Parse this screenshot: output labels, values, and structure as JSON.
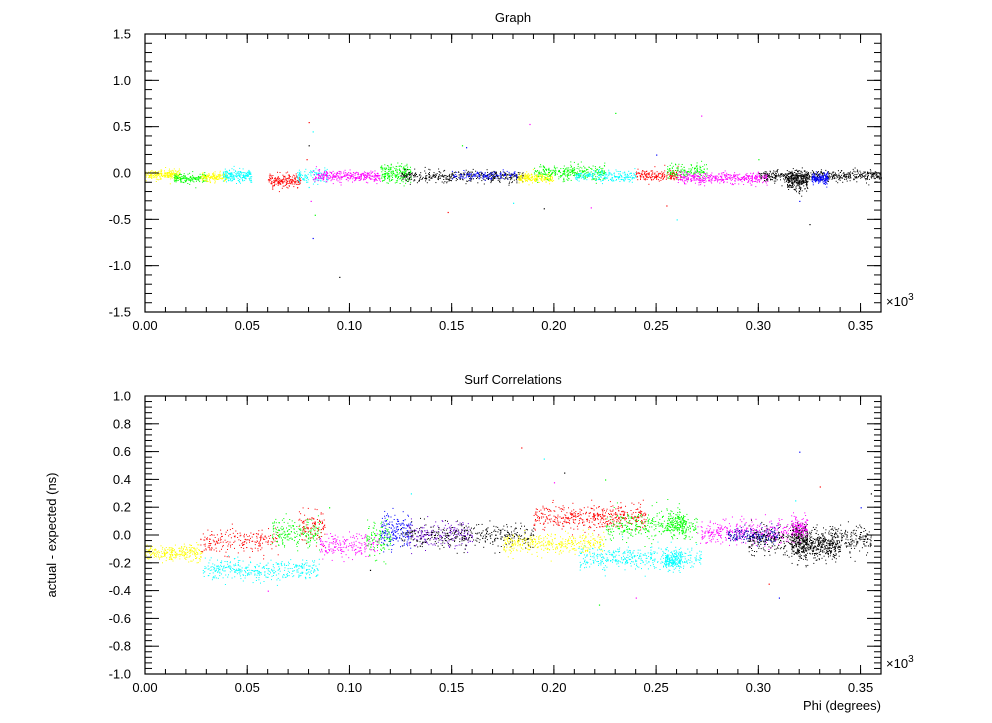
{
  "colors": {
    "yellow": "#ffff00",
    "cyan": "#00ffff",
    "green": "#00ff00",
    "red": "#ff0000",
    "magenta": "#ff00ff",
    "black": "#000000",
    "blue": "#0000ff",
    "violet": "#6600cc",
    "navy": "#0000aa"
  },
  "chart_data": [
    {
      "type": "scatter",
      "title": "Graph",
      "xlabel": "",
      "ylabel": "",
      "xlim": [
        0,
        0.36
      ],
      "ylim": [
        -1.5,
        1.5
      ],
      "x_exponent_label": "×10",
      "x_exponent_power": "3",
      "x_ticks": [
        "0.00",
        "0.05",
        "0.10",
        "0.15",
        "0.20",
        "0.25",
        "0.30",
        "0.35"
      ],
      "y_ticks": [
        "-1.5",
        "-1.0",
        "-0.5",
        "0.0",
        "0.5",
        "1.0",
        "1.5"
      ],
      "grid": false,
      "clusters": [
        {
          "color": "yellow",
          "x": [
            0.0,
            0.017
          ],
          "y": -0.01,
          "spread": 0.025,
          "n": 220
        },
        {
          "color": "green",
          "x": [
            0.014,
            0.03
          ],
          "y": -0.05,
          "spread": 0.025,
          "n": 160
        },
        {
          "color": "yellow",
          "x": [
            0.027,
            0.04
          ],
          "y": -0.04,
          "spread": 0.025,
          "n": 150
        },
        {
          "color": "cyan",
          "x": [
            0.038,
            0.052
          ],
          "y": -0.02,
          "spread": 0.035,
          "n": 200
        },
        {
          "color": "red",
          "x": [
            0.06,
            0.076
          ],
          "y": -0.08,
          "spread": 0.03,
          "n": 200
        },
        {
          "color": "cyan",
          "x": [
            0.074,
            0.09
          ],
          "y": -0.03,
          "spread": 0.04,
          "n": 120
        },
        {
          "color": "magenta",
          "x": [
            0.082,
            0.115
          ],
          "y": -0.03,
          "spread": 0.03,
          "n": 320
        },
        {
          "color": "green",
          "x": [
            0.115,
            0.13
          ],
          "y": 0.0,
          "spread": 0.05,
          "n": 220
        },
        {
          "color": "black",
          "x": [
            0.125,
            0.185
          ],
          "y": -0.03,
          "spread": 0.03,
          "n": 420
        },
        {
          "color": "blue",
          "x": [
            0.15,
            0.182
          ],
          "y": -0.02,
          "spread": 0.025,
          "n": 140
        },
        {
          "color": "yellow",
          "x": [
            0.182,
            0.2
          ],
          "y": -0.05,
          "spread": 0.025,
          "n": 220
        },
        {
          "color": "green",
          "x": [
            0.19,
            0.225
          ],
          "y": 0.01,
          "spread": 0.04,
          "n": 320
        },
        {
          "color": "cyan",
          "x": [
            0.21,
            0.24
          ],
          "y": -0.03,
          "spread": 0.03,
          "n": 220
        },
        {
          "color": "red",
          "x": [
            0.24,
            0.262
          ],
          "y": -0.02,
          "spread": 0.03,
          "n": 200
        },
        {
          "color": "green",
          "x": [
            0.255,
            0.275
          ],
          "y": 0.02,
          "spread": 0.04,
          "n": 160
        },
        {
          "color": "magenta",
          "x": [
            0.26,
            0.305
          ],
          "y": -0.05,
          "spread": 0.03,
          "n": 420
        },
        {
          "color": "black",
          "x": [
            0.3,
            0.36
          ],
          "y": -0.03,
          "spread": 0.03,
          "n": 520
        },
        {
          "color": "black",
          "x": [
            0.314,
            0.324
          ],
          "y": -0.08,
          "spread": 0.05,
          "n": 260
        },
        {
          "color": "blue",
          "x": [
            0.326,
            0.334
          ],
          "y": -0.05,
          "spread": 0.03,
          "n": 160
        }
      ],
      "outliers": [
        {
          "x": 0.08,
          "y": 0.55
        },
        {
          "x": 0.082,
          "y": 0.45
        },
        {
          "x": 0.08,
          "y": 0.3
        },
        {
          "x": 0.081,
          "y": -0.3
        },
        {
          "x": 0.083,
          "y": -0.45
        },
        {
          "x": 0.082,
          "y": -0.7
        },
        {
          "x": 0.079,
          "y": 0.15
        },
        {
          "x": 0.08,
          "y": -0.15
        },
        {
          "x": 0.095,
          "y": -1.12
        },
        {
          "x": 0.188,
          "y": 0.53
        },
        {
          "x": 0.155,
          "y": 0.3
        },
        {
          "x": 0.157,
          "y": 0.28
        },
        {
          "x": 0.148,
          "y": -0.42
        },
        {
          "x": 0.18,
          "y": -0.32
        },
        {
          "x": 0.195,
          "y": -0.38
        },
        {
          "x": 0.218,
          "y": -0.37
        },
        {
          "x": 0.23,
          "y": 0.65
        },
        {
          "x": 0.25,
          "y": 0.2
        },
        {
          "x": 0.255,
          "y": -0.35
        },
        {
          "x": 0.26,
          "y": -0.5
        },
        {
          "x": 0.325,
          "y": -0.55
        },
        {
          "x": 0.272,
          "y": 0.62
        },
        {
          "x": 0.3,
          "y": 0.15
        },
        {
          "x": 0.32,
          "y": -0.3
        }
      ]
    },
    {
      "type": "scatter",
      "title": "Surf Correlations",
      "xlabel": "Phi (degrees)",
      "ylabel": "actual - expected (ns)",
      "xlim": [
        0,
        0.36
      ],
      "ylim": [
        -1.0,
        1.0
      ],
      "x_exponent_label": "×10",
      "x_exponent_power": "3",
      "x_ticks": [
        "0.00",
        "0.05",
        "0.10",
        "0.15",
        "0.20",
        "0.25",
        "0.30",
        "0.35"
      ],
      "y_ticks": [
        "-1.0",
        "-0.8",
        "-0.6",
        "-0.4",
        "-0.2",
        "0.0",
        "0.2",
        "0.4",
        "0.6",
        "0.8",
        "1.0"
      ],
      "grid": false,
      "clusters": [
        {
          "color": "yellow",
          "x": [
            0.0,
            0.028
          ],
          "y": -0.13,
          "spread": 0.03,
          "n": 260
        },
        {
          "color": "cyan",
          "x": [
            0.028,
            0.085
          ],
          "y": -0.25,
          "spread": 0.035,
          "n": 380
        },
        {
          "color": "red",
          "x": [
            0.027,
            0.065
          ],
          "y": -0.04,
          "spread": 0.045,
          "n": 220
        },
        {
          "color": "green",
          "x": [
            0.062,
            0.086
          ],
          "y": 0.02,
          "spread": 0.05,
          "n": 200
        },
        {
          "color": "red",
          "x": [
            0.075,
            0.088
          ],
          "y": 0.07,
          "spread": 0.05,
          "n": 100
        },
        {
          "color": "magenta",
          "x": [
            0.085,
            0.115
          ],
          "y": -0.07,
          "spread": 0.04,
          "n": 200
        },
        {
          "color": "green",
          "x": [
            0.108,
            0.12
          ],
          "y": -0.02,
          "spread": 0.06,
          "n": 120
        },
        {
          "color": "blue",
          "x": [
            0.115,
            0.13
          ],
          "y": 0.03,
          "spread": 0.06,
          "n": 180
        },
        {
          "color": "violet",
          "x": [
            0.128,
            0.16
          ],
          "y": 0.01,
          "spread": 0.045,
          "n": 240
        },
        {
          "color": "black",
          "x": [
            0.125,
            0.19
          ],
          "y": 0.0,
          "spread": 0.045,
          "n": 360
        },
        {
          "color": "yellow",
          "x": [
            0.175,
            0.225
          ],
          "y": -0.06,
          "spread": 0.035,
          "n": 380
        },
        {
          "color": "red",
          "x": [
            0.19,
            0.245
          ],
          "y": 0.13,
          "spread": 0.045,
          "n": 460
        },
        {
          "color": "cyan",
          "x": [
            0.212,
            0.272
          ],
          "y": -0.16,
          "spread": 0.04,
          "n": 420
        },
        {
          "color": "green",
          "x": [
            0.225,
            0.27
          ],
          "y": 0.07,
          "spread": 0.05,
          "n": 320
        },
        {
          "color": "cyan",
          "x": [
            0.254,
            0.262
          ],
          "y": -0.18,
          "spread": 0.03,
          "n": 160
        },
        {
          "color": "green",
          "x": [
            0.255,
            0.265
          ],
          "y": 0.08,
          "spread": 0.04,
          "n": 140
        },
        {
          "color": "magenta",
          "x": [
            0.27,
            0.32
          ],
          "y": 0.02,
          "spread": 0.04,
          "n": 380
        },
        {
          "color": "navy",
          "x": [
            0.285,
            0.31
          ],
          "y": 0.0,
          "spread": 0.03,
          "n": 200
        },
        {
          "color": "black",
          "x": [
            0.295,
            0.355
          ],
          "y": -0.03,
          "spread": 0.05,
          "n": 560
        },
        {
          "color": "black",
          "x": [
            0.316,
            0.324
          ],
          "y": -0.05,
          "spread": 0.07,
          "n": 240
        },
        {
          "color": "magenta",
          "x": [
            0.316,
            0.324
          ],
          "y": 0.05,
          "spread": 0.04,
          "n": 120
        },
        {
          "color": "black",
          "x": [
            0.325,
            0.34
          ],
          "y": -0.08,
          "spread": 0.05,
          "n": 220
        }
      ],
      "outliers": [
        {
          "x": 0.184,
          "y": 0.63
        },
        {
          "x": 0.195,
          "y": 0.55
        },
        {
          "x": 0.205,
          "y": 0.45
        },
        {
          "x": 0.2,
          "y": 0.38
        },
        {
          "x": 0.225,
          "y": 0.4
        },
        {
          "x": 0.32,
          "y": 0.6
        },
        {
          "x": 0.33,
          "y": 0.35
        },
        {
          "x": 0.318,
          "y": 0.25
        },
        {
          "x": 0.355,
          "y": 0.3
        },
        {
          "x": 0.24,
          "y": -0.45
        },
        {
          "x": 0.222,
          "y": -0.5
        },
        {
          "x": 0.31,
          "y": -0.45
        },
        {
          "x": 0.305,
          "y": -0.35
        },
        {
          "x": 0.13,
          "y": 0.3
        },
        {
          "x": 0.11,
          "y": -0.25
        },
        {
          "x": 0.06,
          "y": -0.4
        },
        {
          "x": 0.09,
          "y": 0.2
        },
        {
          "x": 0.35,
          "y": 0.2
        }
      ]
    }
  ]
}
